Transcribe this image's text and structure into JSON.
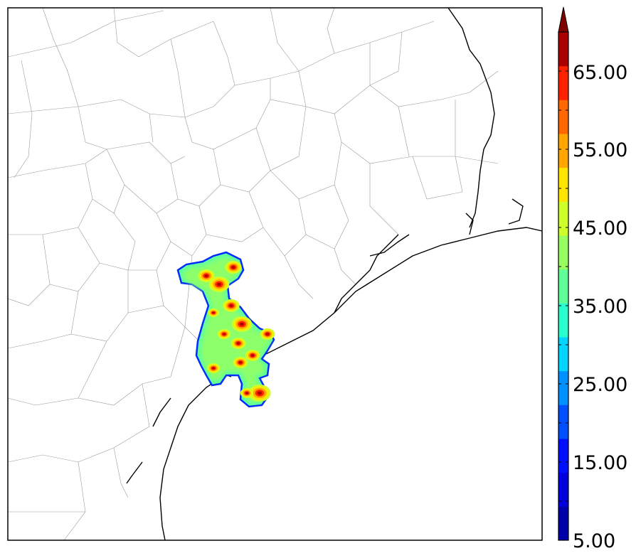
{
  "colorbar": {
    "tick_labels": [
      "5.00",
      "15.00",
      "25.00",
      "35.00",
      "45.00",
      "55.00",
      "65.00"
    ],
    "min": 5,
    "max": 70,
    "step": 5,
    "extend": "max",
    "colors": [
      "#0000aa",
      "#0000dd",
      "#0010ff",
      "#0050ff",
      "#0090ff",
      "#00d4ff",
      "#29ffce",
      "#60ff97",
      "#97ff60",
      "#ceff29",
      "#ffe500",
      "#ffa600",
      "#ff6800",
      "#ff2200",
      "#aa0000"
    ],
    "extend_color": "#800000"
  },
  "map": {
    "region": "Texas Gulf Coast",
    "background": "#ffffff",
    "county_line_color": "#999999",
    "coast_line_color": "#000000"
  }
}
